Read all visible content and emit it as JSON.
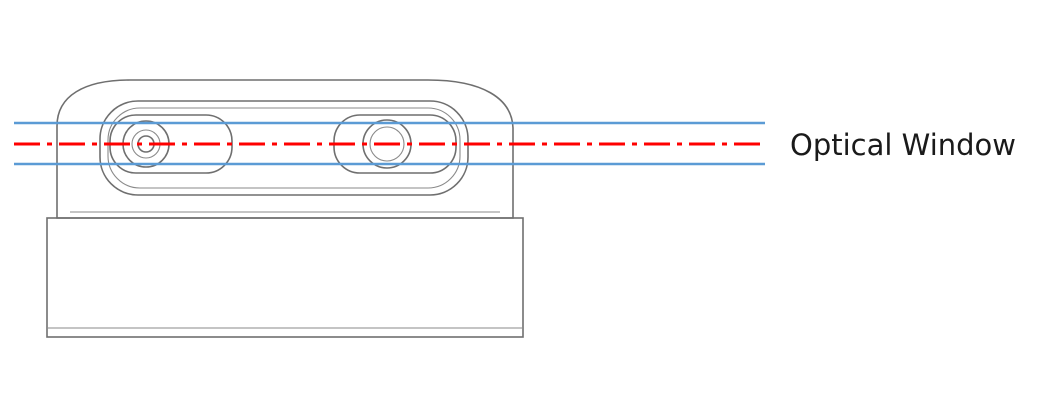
{
  "annotation": {
    "label": "Optical Window"
  },
  "colors": {
    "window_bounds": "#5b9bd5",
    "center_line": "#ff0000",
    "device_outline": "#6f6f6f",
    "label_text": "#1a1a1a"
  }
}
